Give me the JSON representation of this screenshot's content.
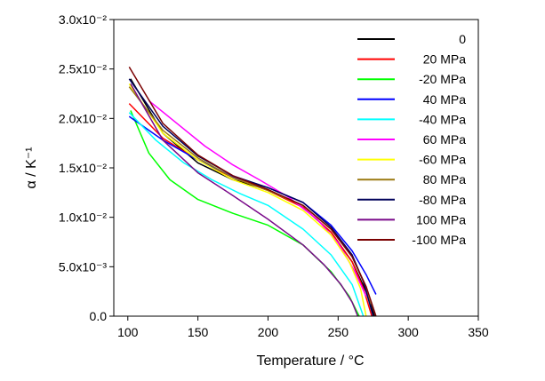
{
  "chart_data": {
    "type": "line",
    "xlabel": "Temperature / °C",
    "ylabel": "α / K⁻¹",
    "xlim": [
      90,
      350
    ],
    "ylim": [
      0,
      0.03
    ],
    "x_ticks": [
      100,
      150,
      200,
      250,
      300,
      350
    ],
    "x_tick_labels": [
      "100",
      "150",
      "200",
      "250",
      "300",
      "350"
    ],
    "y_ticks": [
      0,
      0.005,
      0.01,
      0.015,
      0.02,
      0.025,
      0.03
    ],
    "y_tick_labels": [
      "0.0",
      "5.0x10⁻³",
      "1.0x10⁻²",
      "1.5x10⁻²",
      "2.0x10⁻²",
      "2.5x10⁻²",
      "3.0x10⁻²"
    ],
    "grid": false,
    "legend_position": "top-right",
    "series": [
      {
        "name": "0",
        "color": "#000000",
        "x": [
          102,
          125,
          150,
          175,
          200,
          225,
          245,
          260,
          270,
          276
        ],
        "y": [
          0.024,
          0.0185,
          0.0155,
          0.0138,
          0.0128,
          0.011,
          0.0085,
          0.0055,
          0.0025,
          0.0
        ]
      },
      {
        "name": "20 MPa",
        "color": "#ff0000",
        "x": [
          101,
          125,
          150,
          175,
          200,
          225,
          245,
          260,
          268,
          274
        ],
        "y": [
          0.0215,
          0.018,
          0.0158,
          0.014,
          0.0127,
          0.011,
          0.0085,
          0.0055,
          0.0028,
          0.0
        ]
      },
      {
        "name": "-20 MPa",
        "color": "#00ff00",
        "x": [
          102,
          115,
          130,
          150,
          175,
          200,
          225,
          245,
          258,
          265
        ],
        "y": [
          0.0208,
          0.0165,
          0.0138,
          0.0118,
          0.0104,
          0.0092,
          0.0072,
          0.0045,
          0.002,
          0.0
        ]
      },
      {
        "name": "40 MPa",
        "color": "#0000ff",
        "x": [
          101,
          125,
          150,
          175,
          200,
          225,
          245,
          260,
          270,
          277
        ],
        "y": [
          0.0202,
          0.0178,
          0.0158,
          0.0141,
          0.013,
          0.0115,
          0.0092,
          0.0066,
          0.0042,
          0.0022
        ]
      },
      {
        "name": "-40 MPa",
        "color": "#00ffff",
        "x": [
          101,
          120,
          140,
          160,
          180,
          200,
          225,
          245,
          260,
          268
        ],
        "y": [
          0.0206,
          0.0178,
          0.0155,
          0.0138,
          0.0124,
          0.0112,
          0.0088,
          0.0062,
          0.0032,
          0.0
        ]
      },
      {
        "name": "60 MPa",
        "color": "#ff00ff",
        "x": [
          115,
          135,
          155,
          175,
          195,
          215,
          235,
          250,
          262,
          270
        ],
        "y": [
          0.0218,
          0.0195,
          0.0172,
          0.0153,
          0.0137,
          0.012,
          0.0098,
          0.0074,
          0.0045,
          0.002
        ]
      },
      {
        "name": "-60 MPa",
        "color": "#ffff00",
        "x": [
          101,
          125,
          150,
          175,
          200,
          225,
          245,
          258,
          266,
          270
        ],
        "y": [
          0.0235,
          0.0185,
          0.0158,
          0.0138,
          0.0125,
          0.0107,
          0.0082,
          0.0055,
          0.0028,
          0.0
        ]
      },
      {
        "name": "80 MPa",
        "color": "#9b7a12",
        "x": [
          101,
          125,
          150,
          175,
          200,
          225,
          245,
          260,
          268,
          273
        ],
        "y": [
          0.0232,
          0.0188,
          0.016,
          0.014,
          0.0127,
          0.0112,
          0.0088,
          0.006,
          0.0035,
          0.0012
        ]
      },
      {
        "name": "-80 MPa",
        "color": "#00005a",
        "x": [
          101,
          125,
          150,
          175,
          200,
          225,
          245,
          260,
          268,
          275
        ],
        "y": [
          0.024,
          0.0192,
          0.0162,
          0.0142,
          0.013,
          0.0115,
          0.009,
          0.0062,
          0.0035,
          0.0
        ]
      },
      {
        "name": "100 MPa",
        "color": "#7a0a8a",
        "x": [
          102,
          125,
          150,
          175,
          200,
          225,
          240,
          252,
          260,
          264
        ],
        "y": [
          0.0235,
          0.0178,
          0.0145,
          0.0122,
          0.0098,
          0.0072,
          0.0052,
          0.0032,
          0.0014,
          0.0
        ]
      },
      {
        "name": "-100 MPa",
        "color": "#7a0000",
        "x": [
          101,
          125,
          150,
          175,
          200,
          225,
          245,
          260,
          270,
          277
        ],
        "y": [
          0.0252,
          0.0195,
          0.0163,
          0.0142,
          0.0128,
          0.0112,
          0.0088,
          0.006,
          0.003,
          0.0
        ]
      }
    ]
  }
}
